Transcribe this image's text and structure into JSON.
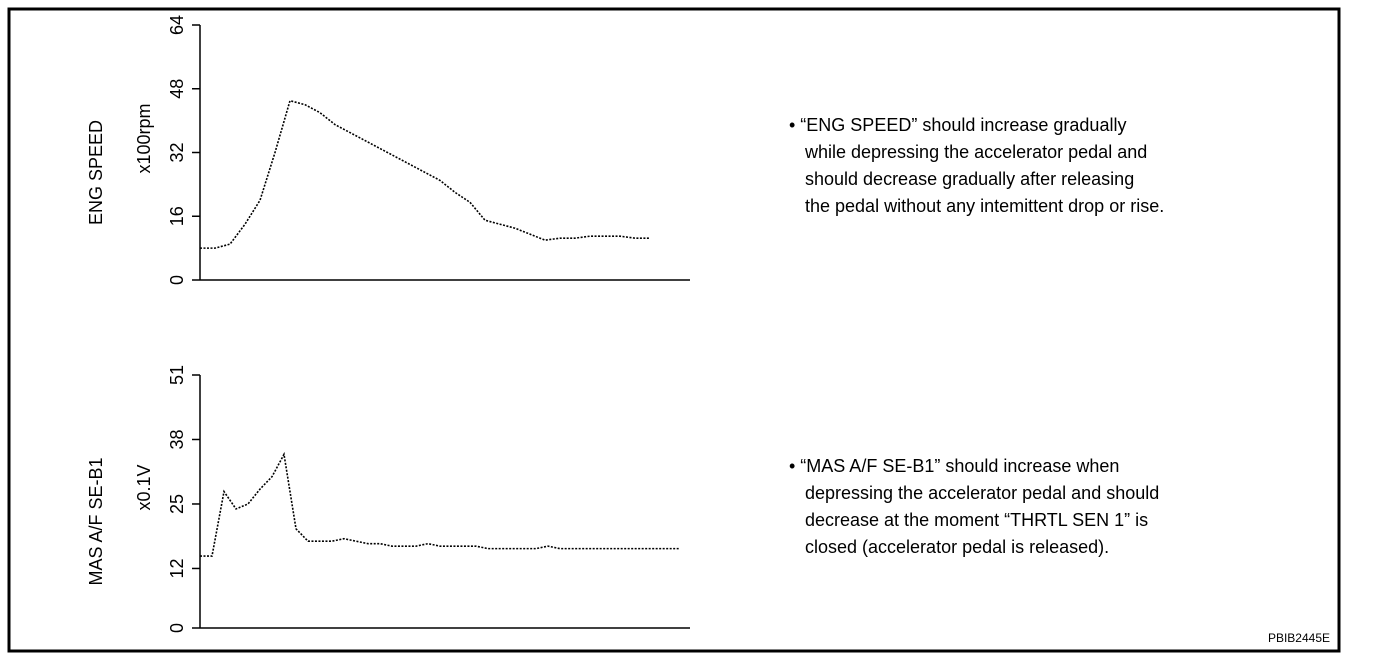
{
  "chart_data": [
    {
      "type": "line",
      "ylabel": "ENG SPEED",
      "unit": "x100rpm",
      "ylim": [
        0,
        64
      ],
      "yticks": [
        0,
        16,
        32,
        48,
        64
      ],
      "color": "#000000",
      "values": [
        8,
        8,
        9,
        14,
        20,
        32,
        45,
        44,
        42,
        39,
        37,
        35,
        33,
        31,
        29,
        27,
        25,
        22,
        19.5,
        15,
        14,
        13,
        11.5,
        10,
        10.5,
        10.5,
        11,
        11,
        11,
        10.5,
        10.5
      ],
      "notes": [
        "• “ENG SPEED” should increase gradually",
        "while depressing the accelerator pedal and",
        "should decrease gradually after releasing",
        "the pedal without any intemittent drop or rise."
      ]
    },
    {
      "type": "line",
      "ylabel": "MAS A/F SE-B1",
      "unit": "x0.1V",
      "ylim": [
        0,
        51
      ],
      "yticks": [
        0,
        12,
        25,
        38,
        51
      ],
      "color": "#000000",
      "values": [
        14.5,
        14.5,
        27.5,
        24,
        25,
        28,
        30.5,
        35,
        20,
        17.5,
        17.5,
        17.5,
        18,
        17.5,
        17,
        17,
        16.5,
        16.5,
        16.5,
        17,
        16.5,
        16.5,
        16.5,
        16.5,
        16,
        16,
        16,
        16,
        16,
        16.5,
        16,
        16,
        16,
        16,
        16,
        16,
        16,
        16,
        16,
        16,
        16
      ],
      "notes": [
        "• “MAS A/F SE-B1” should increase when",
        "depressing the accelerator pedal and  should",
        "decrease at the moment “THRTL SEN 1” is",
        "closed (accelerator pedal is released)."
      ]
    }
  ],
  "figure_id": "PBIB2445E"
}
